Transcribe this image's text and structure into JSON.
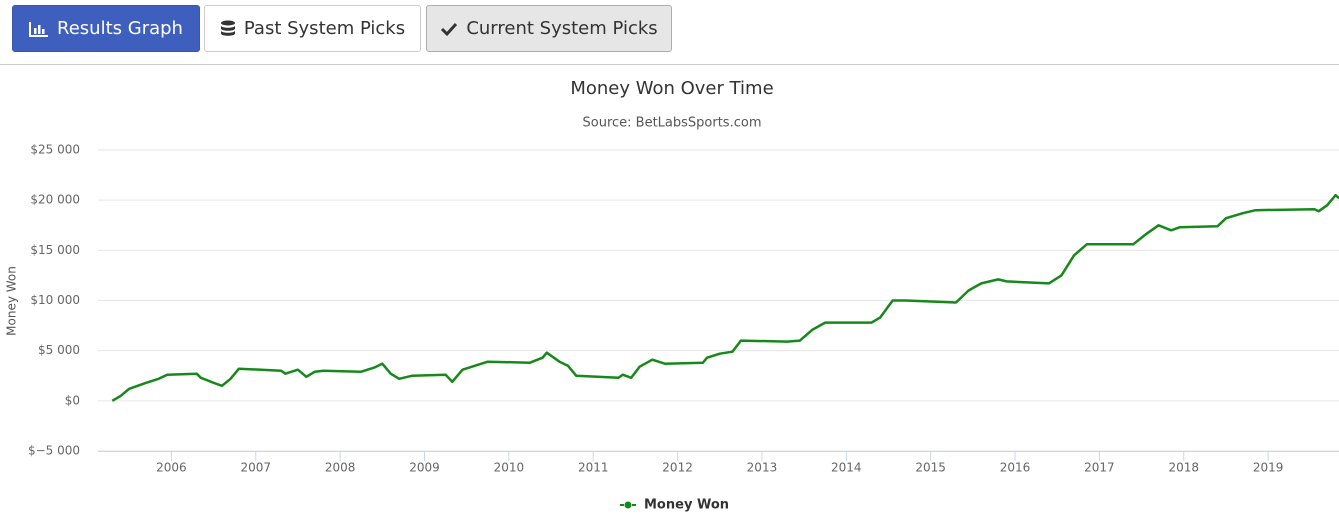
{
  "tabs": [
    {
      "label": "Results Graph"
    },
    {
      "label": "Past System Picks"
    },
    {
      "label": "Current System Picks"
    }
  ],
  "chart_data": {
    "type": "line",
    "title": "Money Won Over Time",
    "subtitle": "Source: BetLabsSports.com",
    "y_label": "Money Won",
    "x": [
      2005.3,
      2005.4,
      2005.5,
      2005.7,
      2005.85,
      2005.95,
      2006.3,
      2006.35,
      2006.5,
      2006.6,
      2006.7,
      2006.8,
      2007.3,
      2007.35,
      2007.5,
      2007.6,
      2007.7,
      2007.8,
      2008.25,
      2008.4,
      2008.5,
      2008.6,
      2008.7,
      2008.85,
      2009.25,
      2009.33,
      2009.45,
      2009.6,
      2009.75,
      2010.25,
      2010.4,
      2010.45,
      2010.6,
      2010.7,
      2010.8,
      2011.3,
      2011.35,
      2011.45,
      2011.55,
      2011.7,
      2011.85,
      2012.3,
      2012.35,
      2012.5,
      2012.65,
      2012.75,
      2013.3,
      2013.45,
      2013.6,
      2013.75,
      2014.3,
      2014.4,
      2014.55,
      2014.7,
      2015.3,
      2015.45,
      2015.6,
      2015.8,
      2015.9,
      2016.4,
      2016.55,
      2016.7,
      2016.85,
      2017.4,
      2017.55,
      2017.7,
      2017.85,
      2017.95,
      2018.4,
      2018.5,
      2018.7,
      2018.85,
      2019.55,
      2019.6,
      2019.7,
      2019.8,
      2019.84
    ],
    "series": [
      {
        "name": "Money Won",
        "color": "#17891a",
        "values": [
          0,
          500,
          1200,
          1800,
          2200,
          2600,
          2700,
          2300,
          1800,
          1500,
          2200,
          3200,
          3000,
          2700,
          3100,
          2400,
          2900,
          3000,
          2900,
          3300,
          3700,
          2700,
          2200,
          2500,
          2600,
          1900,
          3100,
          3500,
          3900,
          3800,
          4300,
          4800,
          3900,
          3500,
          2500,
          2300,
          2600,
          2300,
          3400,
          4100,
          3700,
          3800,
          4300,
          4700,
          4900,
          6000,
          5900,
          6000,
          7100,
          7800,
          7800,
          8300,
          10000,
          10000,
          9800,
          11000,
          11700,
          12100,
          11900,
          11700,
          12500,
          14500,
          15600,
          15600,
          16600,
          17500,
          17000,
          17300,
          17400,
          18200,
          18700,
          19000,
          19100,
          18900,
          19500,
          20500,
          20200
        ]
      }
    ],
    "xlim": [
      2005.13,
      2019.84
    ],
    "xticks": [
      2006,
      2007,
      2008,
      2009,
      2010,
      2011,
      2012,
      2013,
      2014,
      2015,
      2016,
      2017,
      2018,
      2019
    ],
    "ylim": [
      -5000,
      25000
    ],
    "yticks": [
      {
        "value": -5000,
        "label": "$−5 000"
      },
      {
        "value": 0,
        "label": "$0"
      },
      {
        "value": 5000,
        "label": "$5 000"
      },
      {
        "value": 10000,
        "label": "$10 000"
      },
      {
        "value": 15000,
        "label": "$15 000"
      },
      {
        "value": 20000,
        "label": "$20 000"
      },
      {
        "value": 25000,
        "label": "$25 000"
      }
    ],
    "grid": true,
    "legend": "bottom"
  }
}
